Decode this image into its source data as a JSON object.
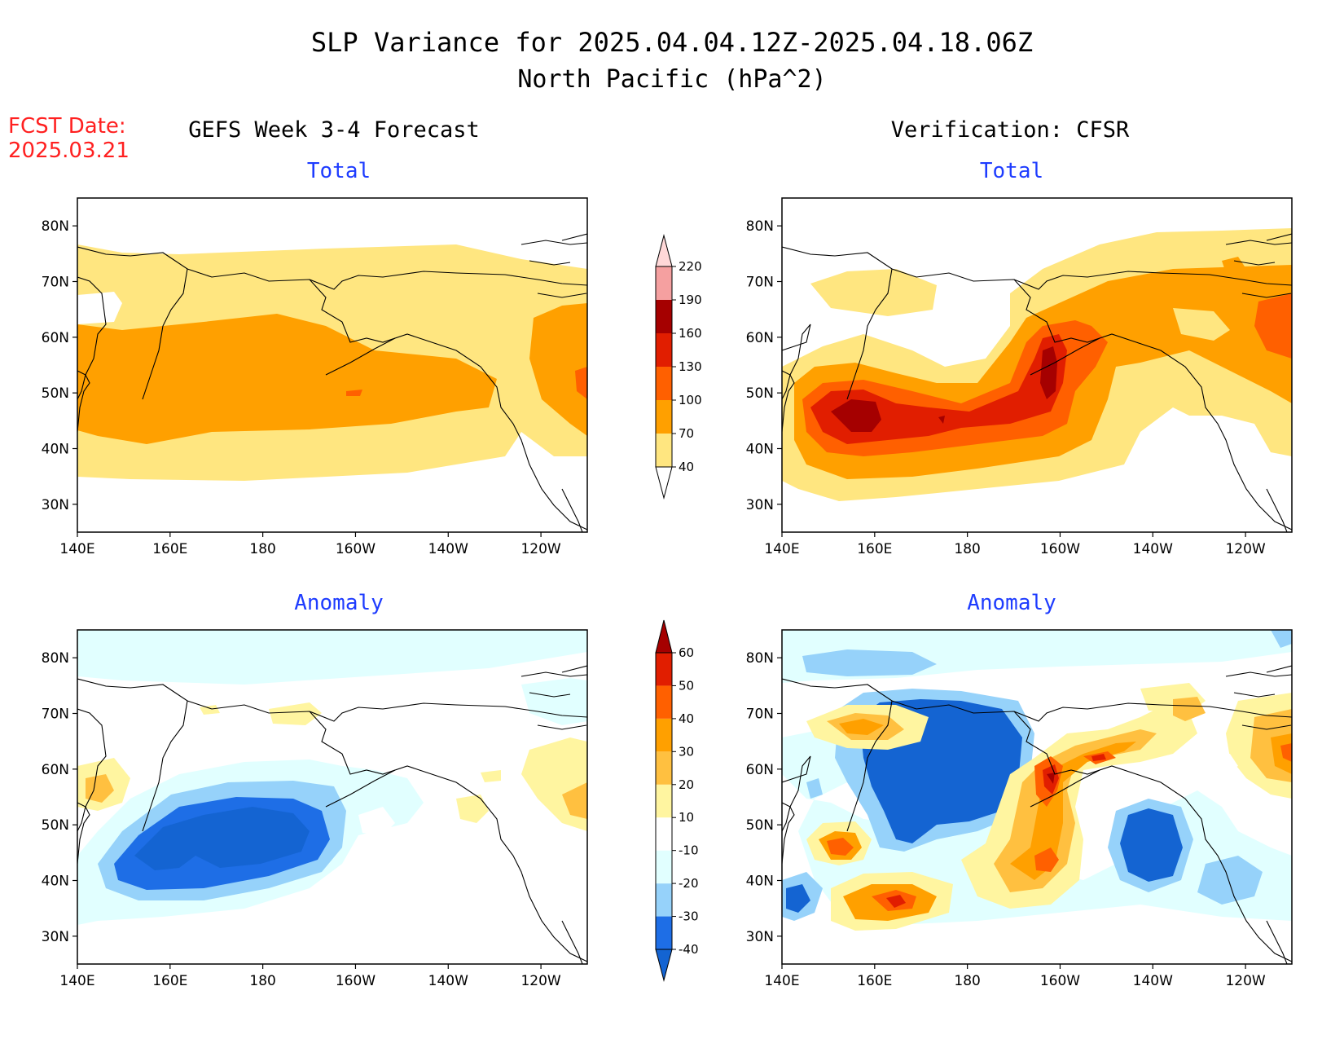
{
  "header": {
    "title_line1": "SLP Variance for 2025.04.04.12Z-2025.04.18.06Z",
    "title_line2": "North Pacific (hPa^2)",
    "fcst_label": "FCST Date:",
    "fcst_date": "2025.03.21",
    "left_column_title": "GEFS Week 3-4 Forecast",
    "right_column_title": "Verification: CFSR"
  },
  "panels": {
    "forecast_total_title": "Total",
    "forecast_anomaly_title": "Anomaly",
    "verification_total_title": "Total",
    "verification_anomaly_title": "Anomaly"
  },
  "axes": {
    "lat_labels": [
      "80N",
      "70N",
      "60N",
      "50N",
      "40N",
      "30N"
    ],
    "lon_labels": [
      "140E",
      "160E",
      "180",
      "160W",
      "140W",
      "120W"
    ],
    "lat_range": [
      25,
      85
    ],
    "lon_range": [
      140,
      250
    ]
  },
  "colorbars": {
    "total": {
      "levels": [
        "40",
        "70",
        "100",
        "130",
        "160",
        "190",
        "220"
      ],
      "colors": [
        "#ffe680",
        "#ffa000",
        "#ff6000",
        "#e11e00",
        "#a50000",
        "#f5a0a0",
        "#ffd8d8"
      ]
    },
    "anomaly": {
      "levels": [
        "-40",
        "-30",
        "-20",
        "-10",
        "10",
        "20",
        "30",
        "40",
        "50",
        "60"
      ],
      "colors": [
        "#1464d2",
        "#1e6ee6",
        "#96d2fa",
        "#e1ffff",
        "#ffffff",
        "#fff5a0",
        "#ffc040",
        "#ffa000",
        "#ff6000",
        "#e11e00",
        "#a50000"
      ]
    }
  }
}
